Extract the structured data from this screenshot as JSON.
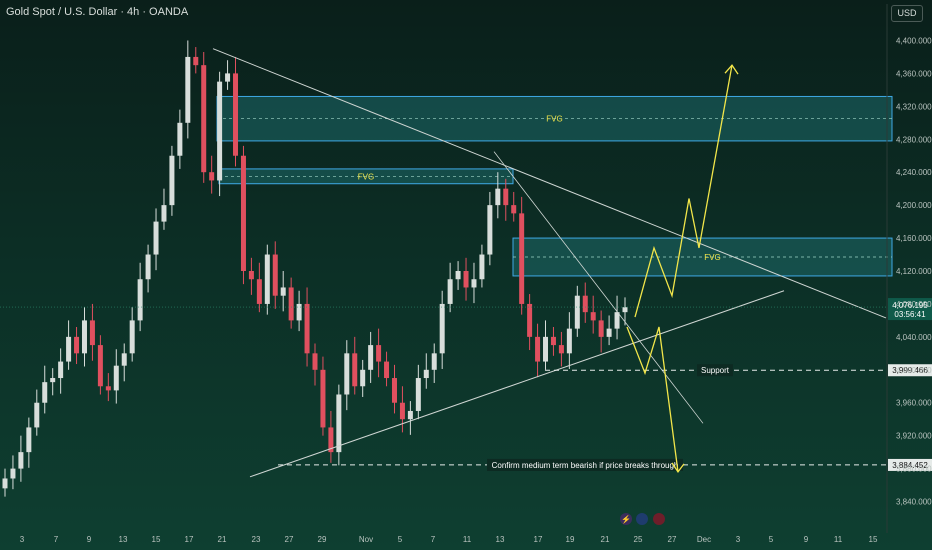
{
  "header": {
    "title": "Gold Spot / U.S. Dollar · 4h · OANDA",
    "currency": "USD"
  },
  "colors": {
    "up_candle": "#d8dedb",
    "down_candle": "#e0505f",
    "fvg_fill": "#1e6a6a",
    "fvg_border": "#3fa9e6",
    "arrow": "#f2e64a",
    "trendline": "#cfd6d3",
    "price_badge": "#0f5a4a"
  },
  "chart_data": {
    "type": "candlestick",
    "ylim": [
      3820,
      4420
    ],
    "y_ticks": [
      3840,
      3880,
      3920,
      3960,
      4000,
      4040,
      4080,
      4120,
      4160,
      4200,
      4240,
      4280,
      4320,
      4360,
      4400
    ],
    "y_tick_labels": [
      "3,840.000",
      "3,880.000",
      "3,920.000",
      "3,960.000",
      "4,000.000",
      "4,040.000",
      "4,080.000",
      "4,120.000",
      "4,160.000",
      "4,200.000",
      "4,240.000",
      "4,280.000",
      "4,320.000",
      "4,360.000",
      "4,400.000"
    ],
    "x_ticks": [
      "3",
      "7",
      "9",
      "13",
      "15",
      "17",
      "21",
      "23",
      "27",
      "29",
      "Nov",
      "5",
      "7",
      "11",
      "13",
      "17",
      "19",
      "21",
      "25",
      "27",
      "Dec",
      "3",
      "5",
      "9",
      "11",
      "15"
    ],
    "current_price_label": "4,076.195",
    "countdown_label": "03:56:41",
    "levels": [
      {
        "label": "Support",
        "price_label": "3,999.466",
        "value": 3999.466
      },
      {
        "label": "Confirm medium term bearish if price breaks through",
        "price_label": "3,884.452",
        "value": 3884.452
      }
    ],
    "zones": [
      {
        "label": "FVG",
        "top": 4332,
        "bottom": 4278
      },
      {
        "label": "FVG",
        "top": 4244,
        "bottom": 4226
      },
      {
        "label": "FVG",
        "top": 4160,
        "bottom": 4114
      }
    ],
    "closes": [
      3868,
      3880,
      3900,
      3930,
      3960,
      3985,
      3990,
      4010,
      4040,
      4020,
      4060,
      4030,
      3980,
      3975,
      4005,
      4020,
      4060,
      4110,
      4140,
      4180,
      4200,
      4260,
      4300,
      4380,
      4370,
      4240,
      4230,
      4350,
      4360,
      4260,
      4120,
      4110,
      4080,
      4140,
      4090,
      4100,
      4060,
      4080,
      4020,
      4000,
      3930,
      3900,
      3970,
      4020,
      3980,
      4000,
      4030,
      4010,
      3990,
      3960,
      3940,
      3950,
      3990,
      4000,
      4020,
      4080,
      4110,
      4120,
      4100,
      4110,
      4140,
      4200,
      4220,
      4200,
      4190,
      4080,
      4040,
      4010,
      4040,
      4030,
      4020,
      4050,
      4090,
      4070,
      4060,
      4040,
      4050,
      4070,
      4076
    ]
  }
}
